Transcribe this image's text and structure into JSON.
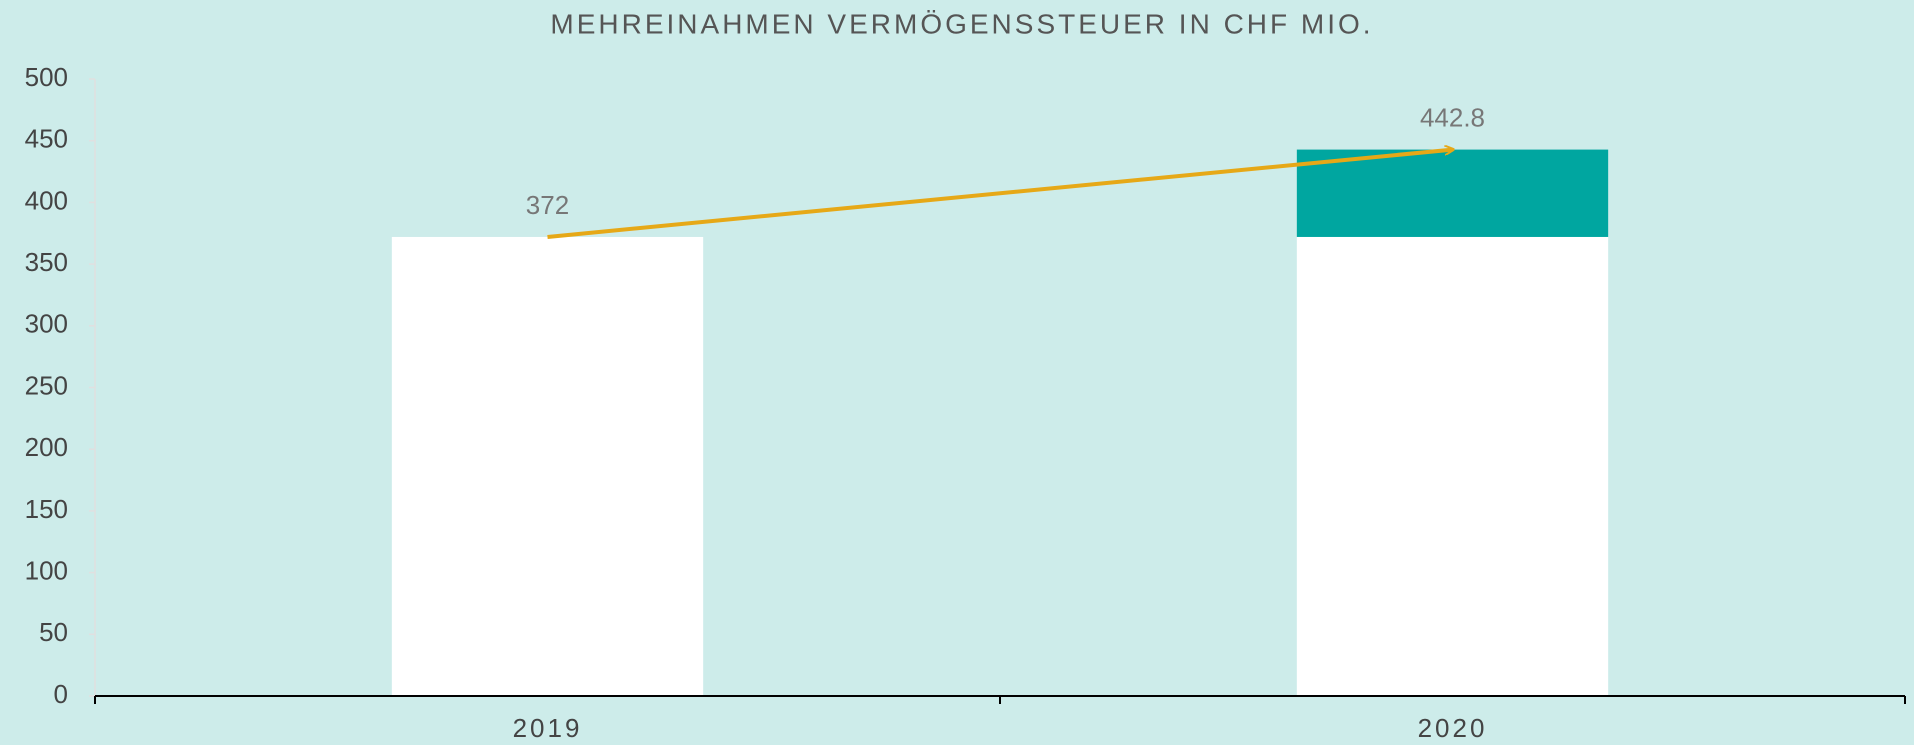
{
  "chart_data": {
    "type": "stacked_bar",
    "title": "MEHREINAHMEN VERMÖGENSSTEUER IN CHF MIO.",
    "categories": [
      "2019",
      "2020"
    ],
    "series": [
      {
        "color": "#ffffff",
        "values": [
          372,
          372
        ]
      },
      {
        "color": "#00a6a0",
        "values": [
          null,
          70.8
        ]
      }
    ],
    "annotations": [
      {
        "text": "372"
      },
      {
        "text": "442.8"
      }
    ],
    "arrow_color": "#e6a817",
    "ylim": [
      0,
      500
    ],
    "yticks": [
      0,
      50,
      100,
      150,
      200,
      250,
      300,
      350,
      400,
      450,
      500
    ]
  }
}
